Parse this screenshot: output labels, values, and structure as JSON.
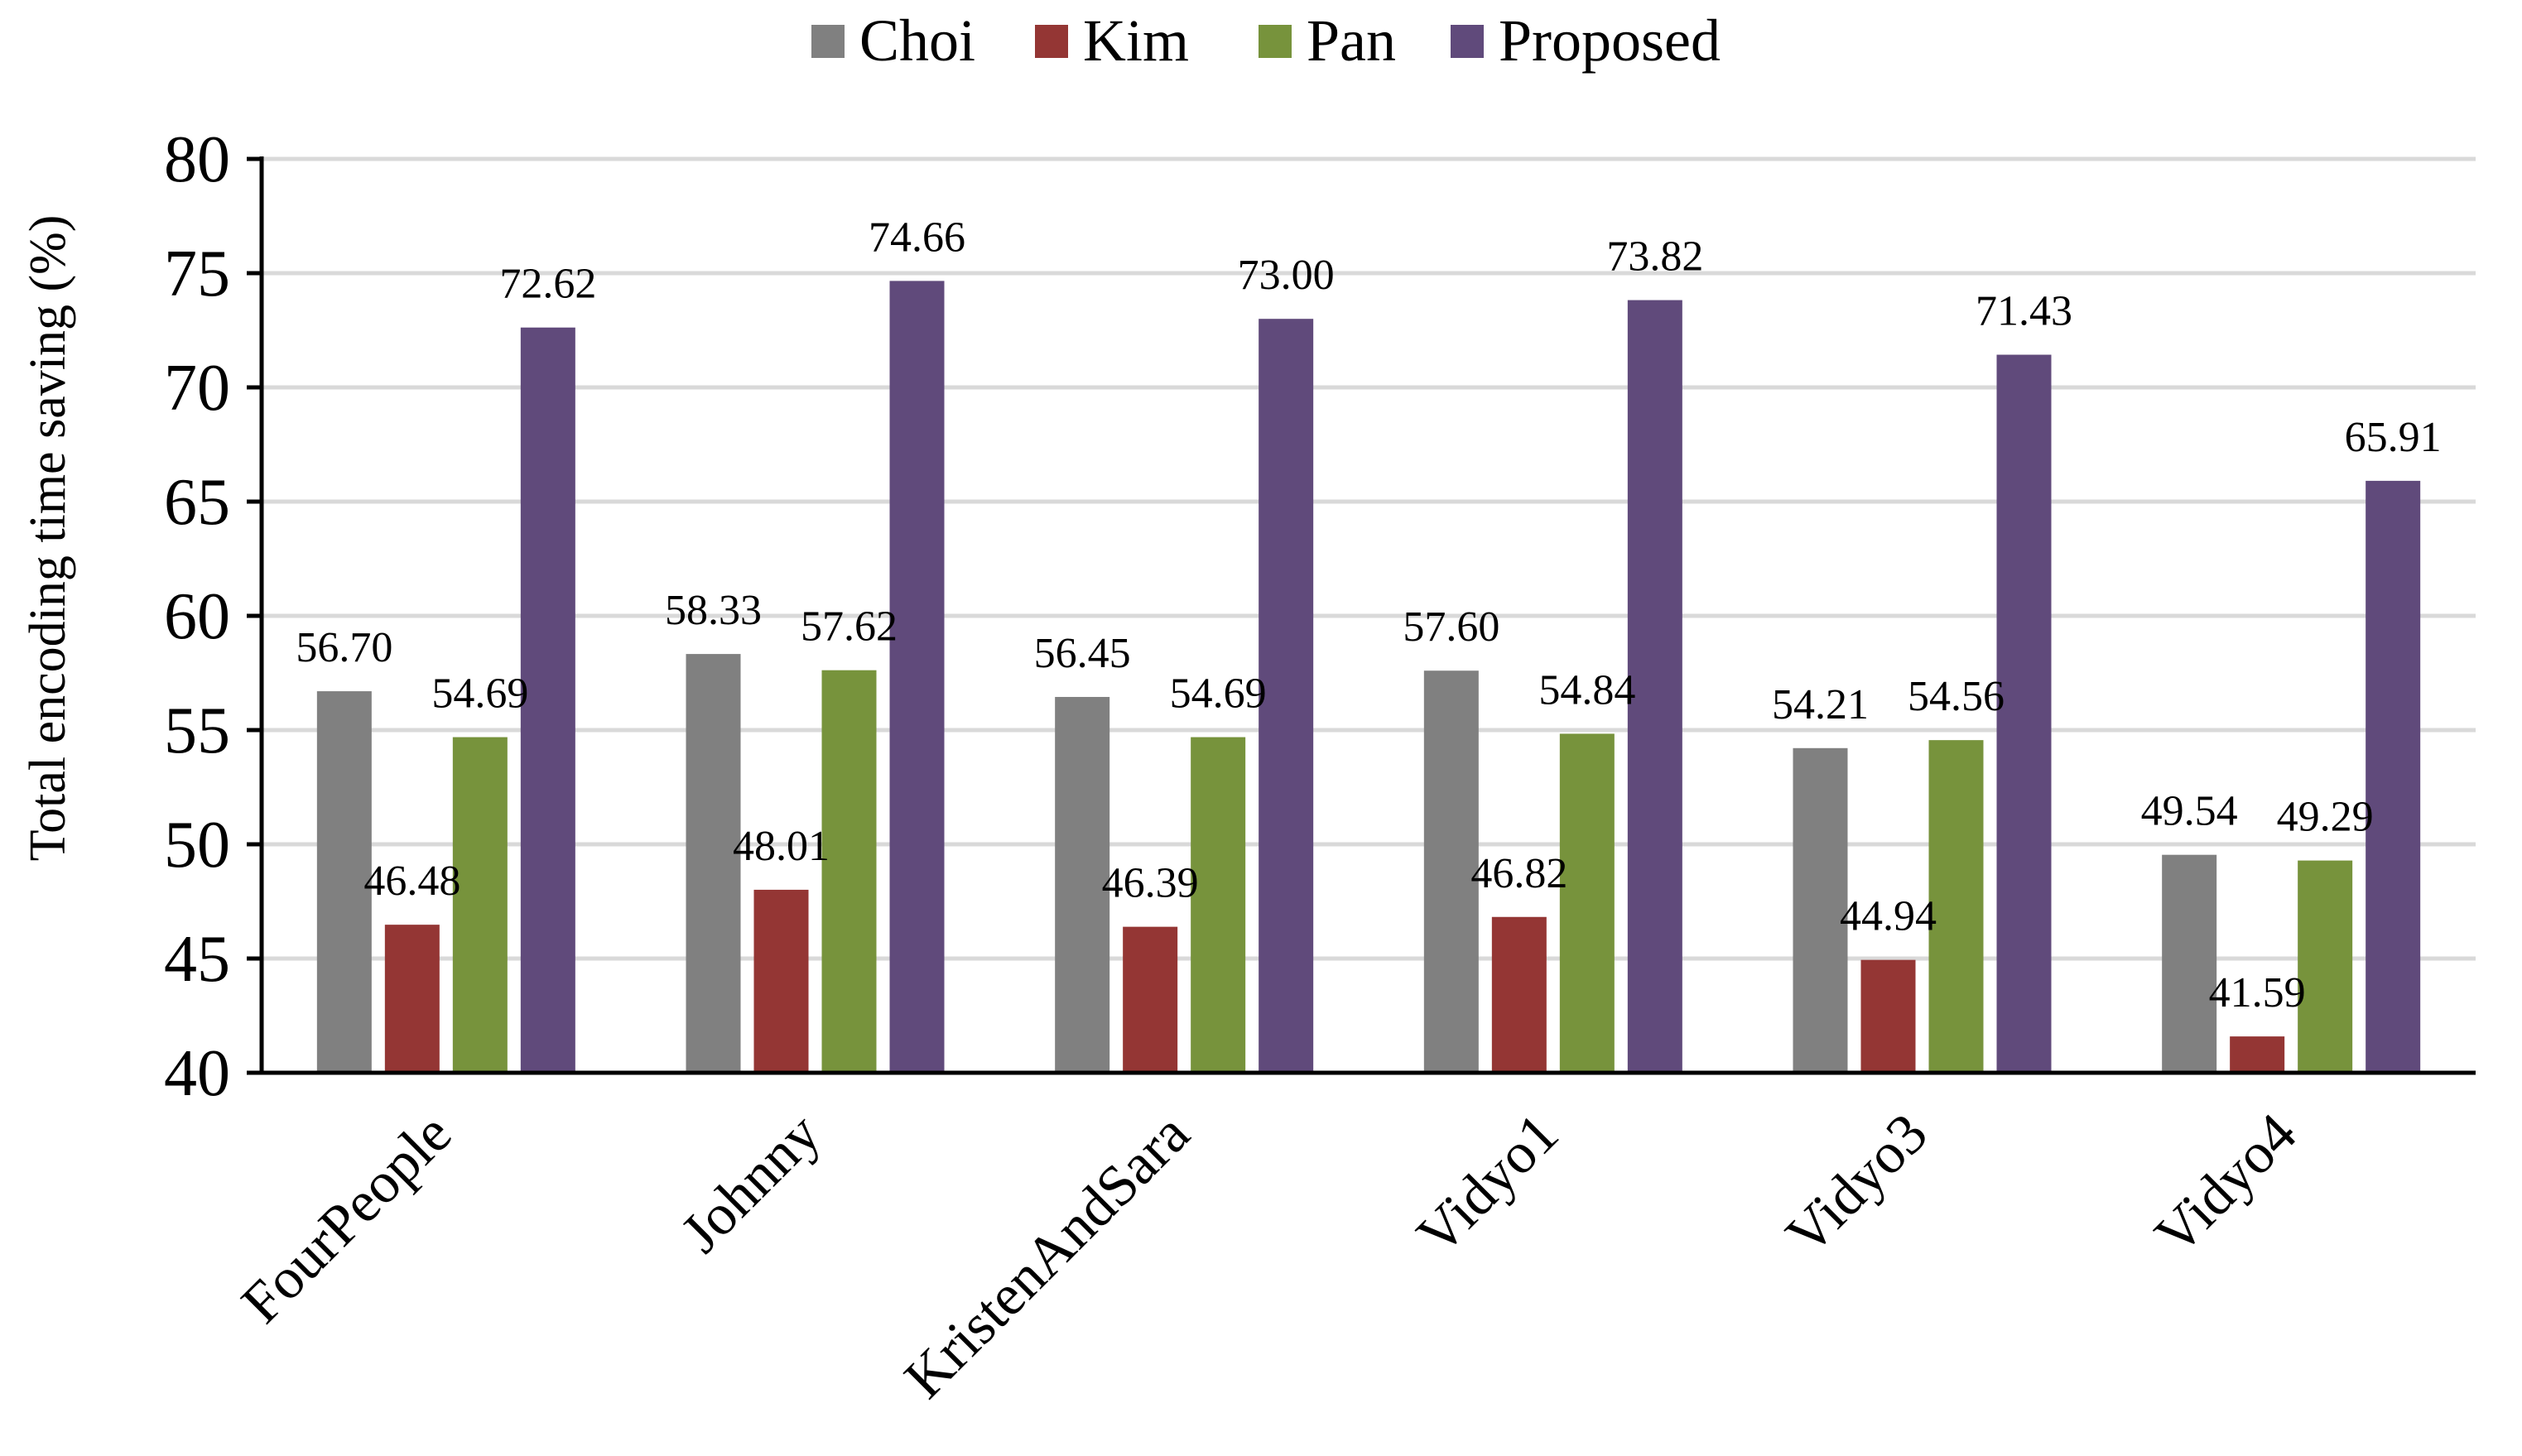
{
  "chart_data": {
    "type": "bar",
    "title": "",
    "xlabel": "",
    "ylabel": "Total encoding time saving (%)",
    "ylim": [
      40,
      80
    ],
    "yticks": [
      40,
      45,
      50,
      55,
      60,
      65,
      70,
      75,
      80
    ],
    "grid": true,
    "legend_position": "top-center",
    "categories": [
      "FourPeople",
      "Johnny",
      "KristenAndSara",
      "Vidyo1",
      "Vidyo3",
      "Vidyo4"
    ],
    "series": [
      {
        "name": "Choi",
        "color": "#808080",
        "values": [
          56.7,
          58.33,
          56.45,
          57.6,
          54.21,
          49.54
        ],
        "labels": [
          "56.70",
          "58.33",
          "56.45",
          "57.60",
          "54.21",
          "49.54"
        ]
      },
      {
        "name": "Kim",
        "color": "#943634",
        "values": [
          46.48,
          48.01,
          46.39,
          46.82,
          44.94,
          41.59
        ],
        "labels": [
          "46.48",
          "48.01",
          "46.39",
          "46.82",
          "44.94",
          "41.59"
        ]
      },
      {
        "name": "Pan",
        "color": "#77933c",
        "values": [
          54.69,
          57.62,
          54.69,
          54.84,
          54.56,
          49.29
        ],
        "labels": [
          "54.69",
          "57.62",
          "54.69",
          "54.84",
          "54.56",
          "49.29"
        ]
      },
      {
        "name": "Proposed",
        "color": "#604a7b",
        "values": [
          72.62,
          74.66,
          73.0,
          73.82,
          71.43,
          65.91
        ],
        "labels": [
          "72.62",
          "74.66",
          "73.00",
          "73.82",
          "71.43",
          "65.91"
        ]
      }
    ]
  }
}
